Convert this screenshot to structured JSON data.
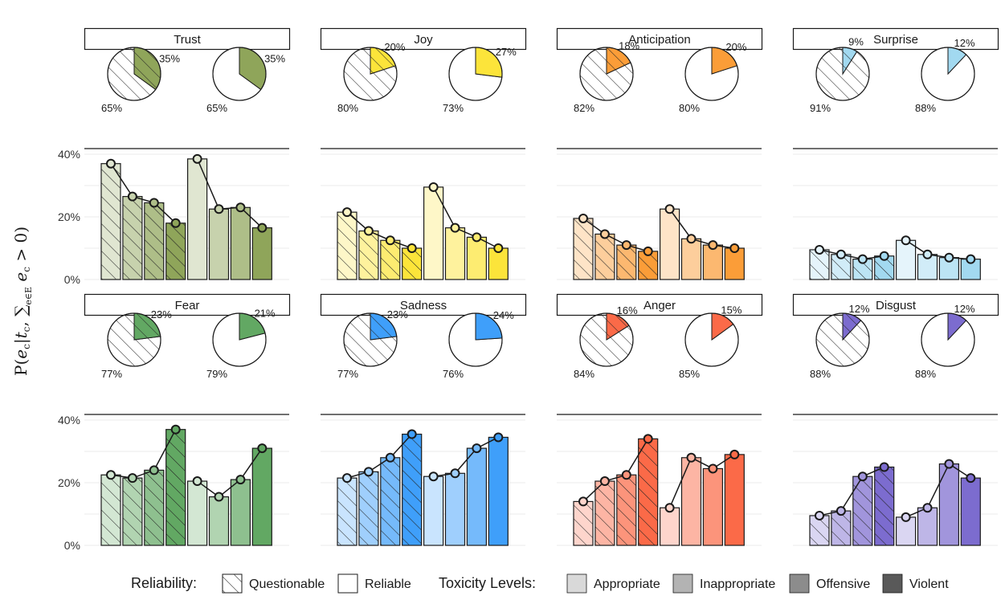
{
  "chart_data": {
    "type": "bar",
    "ylabel": "P(e_c | t_c, Σ_{e∈E} e_c > 0)",
    "y_tick_labels": [
      "0%",
      "20%",
      "40%"
    ],
    "ylim": [
      0,
      42
    ],
    "bar_order": [
      "Questionable-Appropriate",
      "Questionable-Inappropriate",
      "Questionable-Offensive",
      "Questionable-Violent",
      "Reliable-Appropriate",
      "Reliable-Inappropriate",
      "Reliable-Offensive",
      "Reliable-Violent"
    ],
    "panels": [
      {
        "name": "Trust",
        "base_color": "#8fa55a",
        "values": [
          37,
          26.5,
          24.5,
          18,
          38.5,
          22.5,
          23,
          16.5
        ],
        "pie_questionable": [
          35,
          65
        ],
        "pie_reliable": [
          35,
          65
        ]
      },
      {
        "name": "Joy",
        "base_color": "#fce43a",
        "values": [
          21.5,
          15.5,
          12.5,
          10,
          29.5,
          16.5,
          13.5,
          10
        ],
        "pie_questionable": [
          20,
          80
        ],
        "pie_reliable": [
          27,
          73
        ]
      },
      {
        "name": "Anticipation",
        "base_color": "#fb9d38",
        "values": [
          19.5,
          14.5,
          11,
          9,
          22.5,
          13,
          11,
          10
        ],
        "pie_questionable": [
          18,
          82
        ],
        "pie_reliable": [
          20,
          80
        ]
      },
      {
        "name": "Surprise",
        "base_color": "#a2d9f0",
        "values": [
          9.5,
          8,
          6.5,
          7.5,
          12.5,
          8,
          7,
          6.5
        ],
        "pie_questionable": [
          9,
          91
        ],
        "pie_reliable": [
          12,
          88
        ]
      },
      {
        "name": "Fear",
        "base_color": "#62a863",
        "values": [
          22.5,
          21.5,
          24,
          37,
          20.5,
          15.5,
          21,
          31
        ],
        "pie_questionable": [
          23,
          77
        ],
        "pie_reliable": [
          21,
          79
        ]
      },
      {
        "name": "Sadness",
        "base_color": "#3f9ffa",
        "values": [
          21.5,
          23.5,
          28,
          35.5,
          22,
          23,
          31,
          34.5
        ],
        "pie_questionable": [
          23,
          77
        ],
        "pie_reliable": [
          24,
          76
        ]
      },
      {
        "name": "Anger",
        "base_color": "#fb6a48",
        "values": [
          14,
          20.5,
          22.5,
          34,
          12,
          28,
          24.5,
          29
        ],
        "pie_questionable": [
          16,
          84
        ],
        "pie_reliable": [
          15,
          85
        ]
      },
      {
        "name": "Disgust",
        "base_color": "#7c6ccf",
        "values": [
          9.5,
          11,
          22,
          25,
          9,
          12,
          26,
          21.5
        ],
        "pie_questionable": [
          12,
          88
        ],
        "pie_reliable": [
          12,
          88
        ]
      }
    ],
    "legend": {
      "reliability_title": "Reliability:",
      "reliability_items": [
        "Questionable",
        "Reliable"
      ],
      "toxicity_title": "Toxicity Levels:",
      "toxicity_items": [
        "Appropriate",
        "Inappropriate",
        "Offensive",
        "Violent"
      ],
      "toxicity_colors": [
        "#d9d9d9",
        "#b3b3b3",
        "#8c8c8c",
        "#595959"
      ]
    }
  }
}
